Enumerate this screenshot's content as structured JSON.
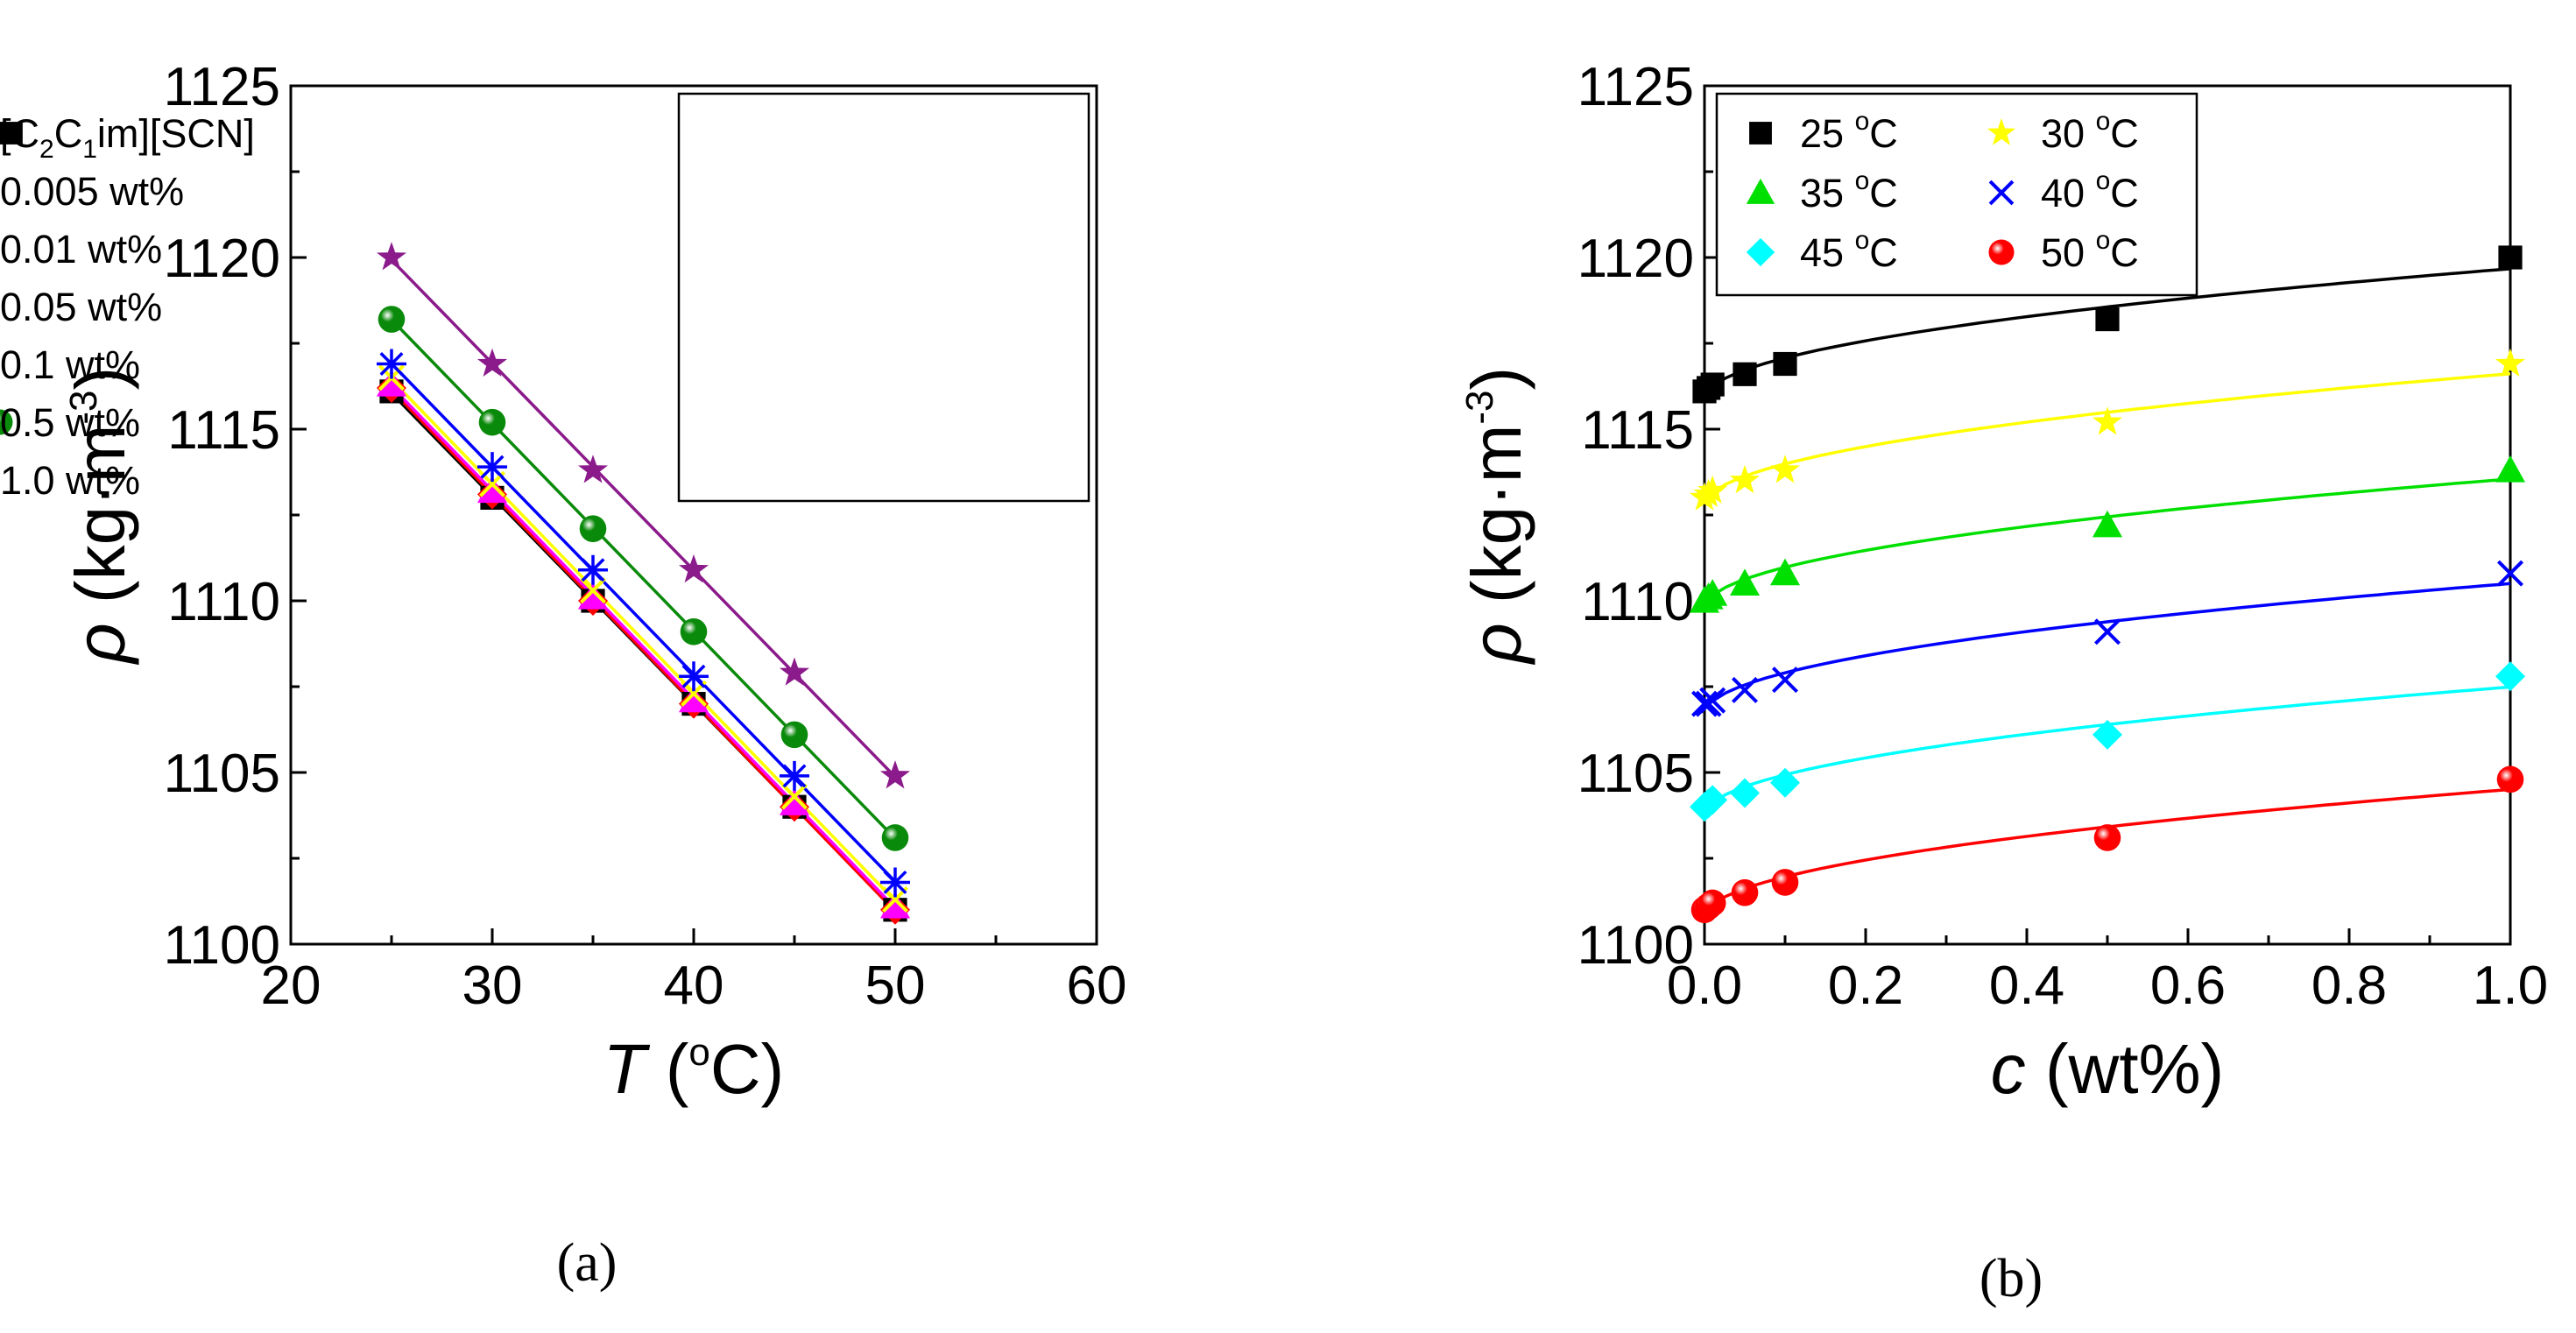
{
  "chart_data": [
    {
      "type": "scatter",
      "panel_label": "(a)",
      "xlabel": {
        "var": "T",
        "unit_open": " (",
        "unit_sup": "o",
        "unit_rest": "C)"
      },
      "ylabel": {
        "var": "ρ",
        "unit_open": " (kg·m",
        "unit_sup": "-3",
        "unit_close": ")"
      },
      "xlim": [
        20,
        60
      ],
      "ylim": [
        1100,
        1125
      ],
      "xticks": [
        "20",
        "30",
        "40",
        "50",
        "60"
      ],
      "yticks": [
        "1100",
        "1105",
        "1110",
        "1115",
        "1120",
        "1125"
      ],
      "legend_position": "top-right",
      "series": [
        {
          "name": "[C2C1im][SCN]",
          "legend": {
            "pre": "[C",
            "sub1": "2",
            "mid": "C",
            "sub2": "1",
            "post": "im][SCN]"
          },
          "color": "#000000",
          "marker": "square",
          "x": [
            25,
            30,
            35,
            40,
            45,
            50
          ],
          "y": [
            1116.1,
            1113.0,
            1110.0,
            1107.0,
            1104.0,
            1101.0
          ]
        },
        {
          "name": "0.005 wt%",
          "color": "#ff0000",
          "marker": "diamond",
          "x": [
            25,
            30,
            35,
            40,
            45,
            50
          ],
          "y": [
            1116.2,
            1113.1,
            1110.0,
            1107.0,
            1104.0,
            1101.0
          ]
        },
        {
          "name": "0.01 wt%",
          "color": "#ff00ff",
          "marker": "triangle",
          "x": [
            25,
            30,
            35,
            40,
            45,
            50
          ],
          "y": [
            1116.3,
            1113.2,
            1110.1,
            1107.1,
            1104.1,
            1101.1
          ]
        },
        {
          "name": "0.05 wt%",
          "color": "#ffff00",
          "marker": "cross",
          "x": [
            25,
            30,
            35,
            40,
            45,
            50
          ],
          "y": [
            1116.5,
            1113.4,
            1110.3,
            1107.3,
            1104.3,
            1101.3
          ]
        },
        {
          "name": "0.1 wt%",
          "color": "#0000ff",
          "marker": "asterisk",
          "x": [
            25,
            30,
            35,
            40,
            45,
            50
          ],
          "y": [
            1116.9,
            1113.9,
            1110.9,
            1107.8,
            1104.9,
            1101.8
          ]
        },
        {
          "name": "0.5 wt%",
          "color": "#0a8a0a",
          "marker": "sphere",
          "x": [
            25,
            30,
            35,
            40,
            45,
            50
          ],
          "y": [
            1118.2,
            1115.2,
            1112.1,
            1109.1,
            1106.1,
            1103.1
          ]
        },
        {
          "name": "1.0 wt%",
          "color": "#8b1a8b",
          "marker": "star",
          "x": [
            25,
            30,
            35,
            40,
            45,
            50
          ],
          "y": [
            1120.0,
            1116.9,
            1113.8,
            1110.9,
            1107.9,
            1104.9
          ]
        }
      ]
    },
    {
      "type": "scatter",
      "panel_label": "(b)",
      "xlabel": {
        "var": "c",
        "unit_open": " (wt%)"
      },
      "ylabel": {
        "var": "ρ",
        "unit_open": " (kg·m",
        "unit_sup": "-3",
        "unit_close": ")"
      },
      "xlim": [
        0,
        1.0
      ],
      "ylim": [
        1100,
        1125
      ],
      "xticks": [
        "0.0",
        "0.2",
        "0.4",
        "0.6",
        "0.8",
        "1.0"
      ],
      "yticks": [
        "1100",
        "1105",
        "1110",
        "1115",
        "1120",
        "1125"
      ],
      "legend_position": "top-left",
      "series": [
        {
          "name": "25 °C",
          "legend": {
            "num": "25 ",
            "sup": "o",
            "unit": "C"
          },
          "color": "#000000",
          "marker": "square",
          "x": [
            0,
            0.005,
            0.01,
            0.05,
            0.1,
            0.5,
            1.0
          ],
          "y": [
            1116.1,
            1116.2,
            1116.3,
            1116.6,
            1116.9,
            1118.2,
            1120.0
          ]
        },
        {
          "name": "30 °C",
          "legend": {
            "num": "30 ",
            "sup": "o",
            "unit": "C"
          },
          "color": "#ffff00",
          "marker": "star",
          "x": [
            0,
            0.005,
            0.01,
            0.05,
            0.1,
            0.5,
            1.0
          ],
          "y": [
            1113.0,
            1113.1,
            1113.2,
            1113.5,
            1113.8,
            1115.2,
            1116.9
          ]
        },
        {
          "name": "35 °C",
          "legend": {
            "num": "35 ",
            "sup": "o",
            "unit": "C"
          },
          "color": "#00e000",
          "marker": "triangle",
          "x": [
            0,
            0.005,
            0.01,
            0.05,
            0.1,
            0.5,
            1.0
          ],
          "y": [
            1110.0,
            1110.1,
            1110.2,
            1110.5,
            1110.8,
            1112.2,
            1113.8
          ]
        },
        {
          "name": "40 °C",
          "legend": {
            "num": "40 ",
            "sup": "o",
            "unit": "C"
          },
          "color": "#0000ff",
          "marker": "cross",
          "x": [
            0,
            0.005,
            0.01,
            0.05,
            0.1,
            0.5,
            1.0
          ],
          "y": [
            1107.0,
            1107.0,
            1107.1,
            1107.4,
            1107.7,
            1109.1,
            1110.8
          ]
        },
        {
          "name": "45 °C",
          "legend": {
            "num": "45 ",
            "sup": "o",
            "unit": "C"
          },
          "color": "#00ffff",
          "marker": "diamond",
          "x": [
            0,
            0.005,
            0.01,
            0.05,
            0.1,
            0.5,
            1.0
          ],
          "y": [
            1104.0,
            1104.1,
            1104.2,
            1104.4,
            1104.7,
            1106.1,
            1107.8
          ]
        },
        {
          "name": "50 °C",
          "legend": {
            "num": "50 ",
            "sup": "o",
            "unit": "C"
          },
          "color": "#ff0000",
          "marker": "sphere",
          "x": [
            0,
            0.005,
            0.01,
            0.05,
            0.1,
            0.5,
            1.0
          ],
          "y": [
            1101.0,
            1101.1,
            1101.2,
            1101.5,
            1101.8,
            1103.1,
            1104.8
          ]
        }
      ]
    }
  ]
}
